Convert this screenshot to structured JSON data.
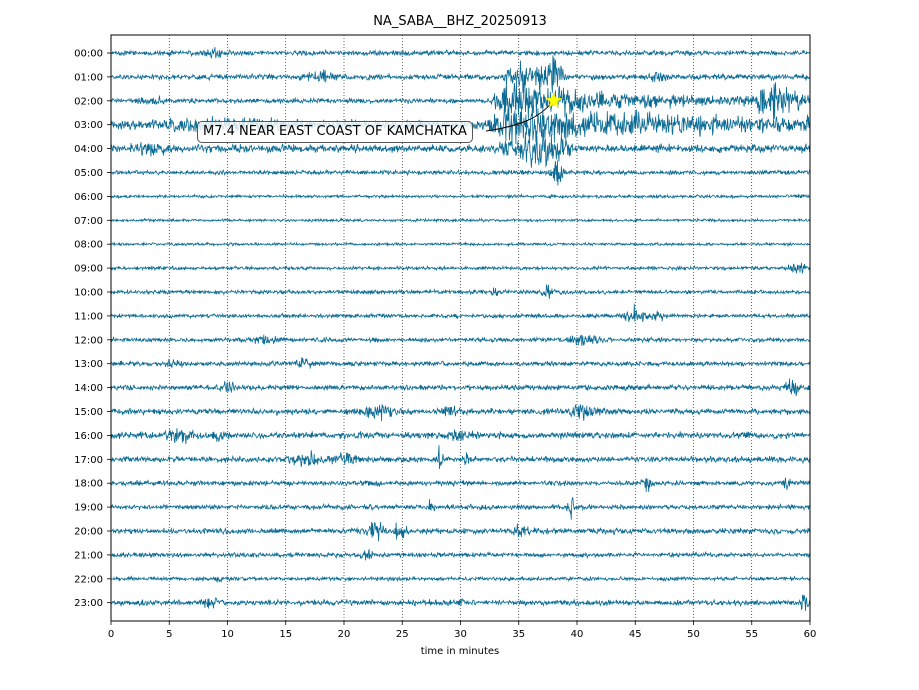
{
  "chart_data": {
    "type": "line",
    "title": "NA_SABA__BHZ_20250913",
    "xlabel": "time in minutes",
    "ylabel": "",
    "xlim": [
      0,
      60
    ],
    "x_ticks": [
      0,
      5,
      10,
      15,
      20,
      25,
      30,
      35,
      40,
      45,
      50,
      55,
      60
    ],
    "y_tick_labels": [
      "00:00",
      "01:00",
      "02:00",
      "03:00",
      "04:00",
      "05:00",
      "06:00",
      "07:00",
      "08:00",
      "09:00",
      "10:00",
      "11:00",
      "12:00",
      "13:00",
      "14:00",
      "15:00",
      "16:00",
      "17:00",
      "18:00",
      "19:00",
      "20:00",
      "21:00",
      "22:00",
      "23:00"
    ],
    "grid": "vertical dotted lines at x ticks",
    "series_color": "#0b6b94",
    "event": {
      "label": "M7.4 NEAR EAST COAST OF KAMCHATKA",
      "hour_row": "02:00",
      "minute": 38.0,
      "marker": "yellow-star",
      "marker_color": "#ffff00"
    }
  }
}
